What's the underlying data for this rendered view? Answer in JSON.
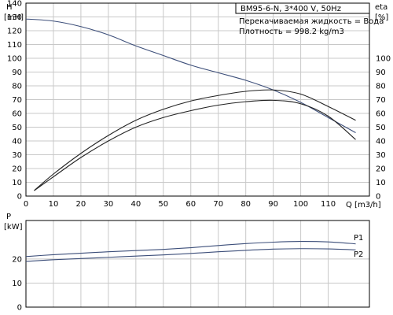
{
  "chart_data": [
    {
      "type": "line",
      "title": "BM95-6-N, 3*400 V, 50Hz",
      "annotations": [
        "Перекачиваемая жидкость = Вода",
        "Плотность = 998.2 kg/m3"
      ],
      "xlabel": "Q [m3/h]",
      "x_tick_labels": [
        "0",
        "10",
        "20",
        "30",
        "40",
        "50",
        "60",
        "70",
        "80",
        "90",
        "100",
        "110"
      ],
      "xlim": [
        0,
        125
      ],
      "ylabel_left": "H",
      "ylabel_left_unit": "[mH]",
      "ylim_left": [
        0,
        140
      ],
      "ylabel_right": "eta",
      "ylabel_right_unit": "[%]",
      "ylim_right": [
        0,
        140
      ],
      "right_ticks": [
        0,
        10,
        20,
        30,
        40,
        50,
        60,
        70,
        80,
        90,
        100
      ],
      "grid": true,
      "series": [
        {
          "axis": "left",
          "x": [
            0,
            10,
            20,
            30,
            40,
            50,
            60,
            70,
            80,
            90,
            100,
            110,
            120
          ],
          "y": [
            128.5,
            127,
            123,
            117,
            109,
            102,
            95,
            89.5,
            84,
            77,
            68,
            57,
            46
          ]
        },
        {
          "axis": "right",
          "x": [
            3,
            10,
            20,
            30,
            40,
            50,
            60,
            70,
            80,
            90,
            100,
            110,
            120
          ],
          "y": [
            4,
            16,
            31,
            44,
            55,
            63,
            69,
            73,
            76,
            77,
            74,
            65,
            55
          ]
        },
        {
          "axis": "right",
          "x": [
            3,
            10,
            20,
            30,
            40,
            50,
            60,
            70,
            80,
            90,
            100,
            110,
            120
          ],
          "y": [
            4,
            14,
            28,
            40,
            50,
            57,
            62,
            66,
            68.5,
            69.5,
            67,
            58,
            41
          ]
        }
      ]
    },
    {
      "type": "line",
      "ylabel": "P",
      "ylabel_unit": "[kW]",
      "ylim": [
        0,
        36
      ],
      "y_ticks": [
        0,
        10,
        20
      ],
      "xlim": [
        0,
        125
      ],
      "grid": true,
      "series": [
        {
          "name": "P1",
          "x": [
            0,
            10,
            20,
            30,
            40,
            50,
            60,
            70,
            80,
            90,
            100,
            110,
            120
          ],
          "y": [
            21,
            21.8,
            22.4,
            23,
            23.5,
            24,
            24.7,
            25.6,
            26.4,
            27,
            27.3,
            27.1,
            26.3
          ]
        },
        {
          "name": "P2",
          "x": [
            0,
            10,
            20,
            30,
            40,
            50,
            60,
            70,
            80,
            90,
            100,
            110,
            120
          ],
          "y": [
            19,
            19.7,
            20.2,
            20.7,
            21.2,
            21.7,
            22.3,
            23,
            23.6,
            24.1,
            24.3,
            24.2,
            23.8
          ]
        }
      ]
    }
  ]
}
